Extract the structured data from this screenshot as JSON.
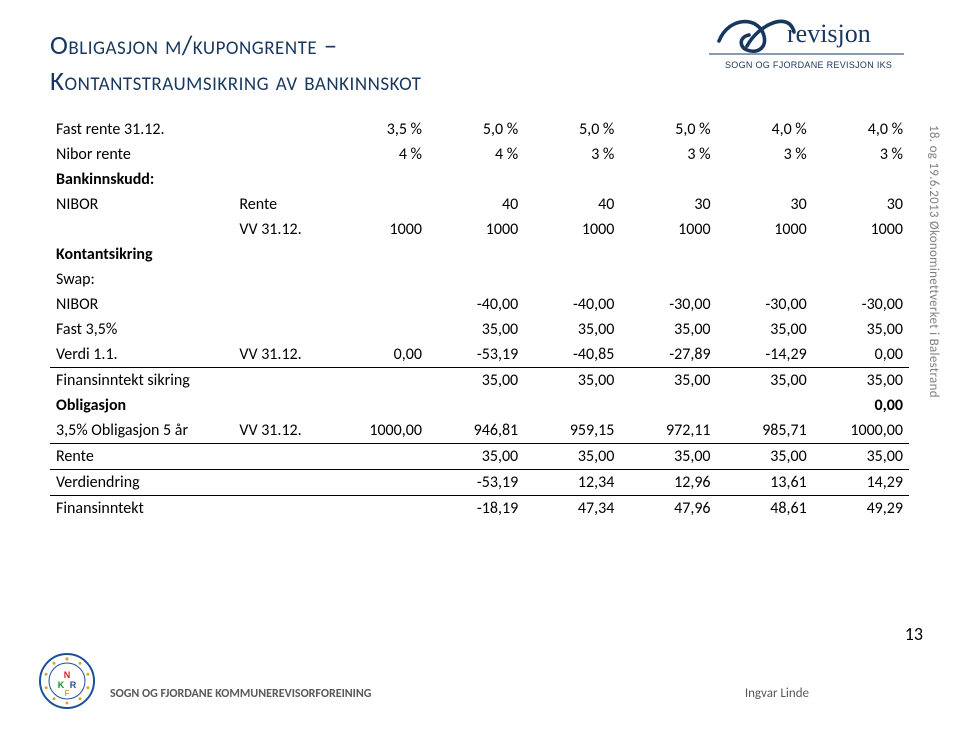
{
  "title": {
    "line1": "Obligasjon m/kupongrente –",
    "line2": "Kontantstraumsikring av bankinnskot"
  },
  "rotated": "18. og 19.6.2013   Økonominettverket i Balestrand",
  "pagenum": "13",
  "footer_left": "SOGN OG FJORDANE KOMMUNEREVISORFOREINING",
  "footer_right": "Ingvar Linde",
  "logo": {
    "brand": "revisjon",
    "sub": "SOGN OG FJORDANE REVISJON IKS"
  },
  "table": {
    "rows": [
      {
        "style": "normal",
        "label": "Fast rente 31.12.",
        "tag": "",
        "c": [
          "3,5 %",
          "5,0 %",
          "5,0 %",
          "5,0 %",
          "4,0 %",
          "4,0 %"
        ]
      },
      {
        "style": "normal",
        "label": "Nibor rente",
        "tag": "",
        "c": [
          "4 %",
          "4 %",
          "3 %",
          "3 %",
          "3 %",
          "3 %"
        ]
      },
      {
        "style": "bold",
        "label": "Bankinnskudd:",
        "tag": "",
        "c": [
          "",
          "",
          "",
          "",
          "",
          ""
        ]
      },
      {
        "style": "normal",
        "label": "NIBOR",
        "tag": "Rente",
        "c": [
          "",
          "40",
          "40",
          "30",
          "30",
          "30"
        ]
      },
      {
        "style": "normal",
        "label": "",
        "tag": "VV 31.12.",
        "c": [
          "1000",
          "1000",
          "1000",
          "1000",
          "1000",
          "1000"
        ]
      },
      {
        "style": "bold",
        "label": "Kontantsikring",
        "tag": "",
        "c": [
          "",
          "",
          "",
          "",
          "",
          ""
        ]
      },
      {
        "style": "normal",
        "label": "Swap:",
        "tag": "",
        "c": [
          "",
          "",
          "",
          "",
          "",
          ""
        ]
      },
      {
        "style": "normal",
        "label": "NIBOR",
        "tag": "",
        "c": [
          "",
          "-40,00",
          "-40,00",
          "-30,00",
          "-30,00",
          "-30,00"
        ]
      },
      {
        "style": "normal",
        "label": "Fast 3,5%",
        "tag": "",
        "c": [
          "",
          "35,00",
          "35,00",
          "35,00",
          "35,00",
          "35,00"
        ]
      },
      {
        "style": "normal",
        "label": "Verdi 1.1.",
        "tag": "VV 31.12.",
        "c": [
          "0,00",
          "-53,19",
          "-40,85",
          "-27,89",
          "-14,29",
          "0,00"
        ]
      },
      {
        "style": "border-top",
        "label": "Finansinntekt sikring",
        "tag": "",
        "c": [
          "",
          "35,00",
          "35,00",
          "35,00",
          "35,00",
          "35,00"
        ]
      },
      {
        "style": "bold",
        "label": "Obligasjon",
        "tag": "",
        "c": [
          "",
          "",
          "",
          "",
          "",
          "0,00"
        ]
      },
      {
        "style": "normal",
        "label": "3,5% Obligasjon 5 år",
        "tag": "VV 31.12.",
        "c": [
          "1000,00",
          "946,81",
          "959,15",
          "972,11",
          "985,71",
          "1000,00"
        ]
      },
      {
        "style": "border-top",
        "label": "Rente",
        "tag": "",
        "c": [
          "",
          "35,00",
          "35,00",
          "35,00",
          "35,00",
          "35,00"
        ]
      },
      {
        "style": "border-top",
        "label": "Verdiendring",
        "tag": "",
        "c": [
          "",
          "-53,19",
          "12,34",
          "12,96",
          "13,61",
          "14,29"
        ]
      },
      {
        "style": "border-top",
        "label": "Finansinntekt",
        "tag": "",
        "c": [
          "",
          "-18,19",
          "47,34",
          "47,96",
          "48,61",
          "49,29"
        ]
      }
    ]
  }
}
